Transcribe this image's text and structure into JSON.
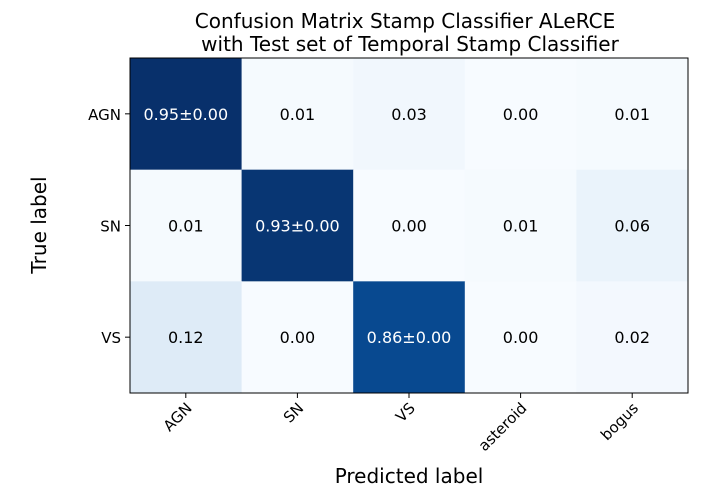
{
  "chart_data": {
    "type": "heatmap",
    "title_line1": "Confusion Matrix Stamp Classifier ALeRCE",
    "title_line2": "with Test set of Temporal Stamp Classifier",
    "xlabel": "Predicted label",
    "ylabel": "True label",
    "x_categories": [
      "AGN",
      "SN",
      "VS",
      "asteroid",
      "bogus"
    ],
    "y_categories": [
      "AGN",
      "SN",
      "VS"
    ],
    "values": [
      [
        0.95,
        0.01,
        0.03,
        0.0,
        0.01
      ],
      [
        0.01,
        0.93,
        0.0,
        0.01,
        0.06
      ],
      [
        0.12,
        0.0,
        0.86,
        0.0,
        0.02
      ]
    ],
    "labels": [
      [
        "0.95±0.00",
        "0.01",
        "0.03",
        "0.00",
        "0.01"
      ],
      [
        "0.01",
        "0.93±0.00",
        "0.00",
        "0.01",
        "0.06"
      ],
      [
        "0.12",
        "0.00",
        "0.86±0.00",
        "0.00",
        "0.02"
      ]
    ],
    "colormap": "Blues",
    "color_low": "#f7fbff",
    "color_high": "#08306b",
    "text_color_dark": "#000000",
    "text_color_light": "#ffffff"
  }
}
